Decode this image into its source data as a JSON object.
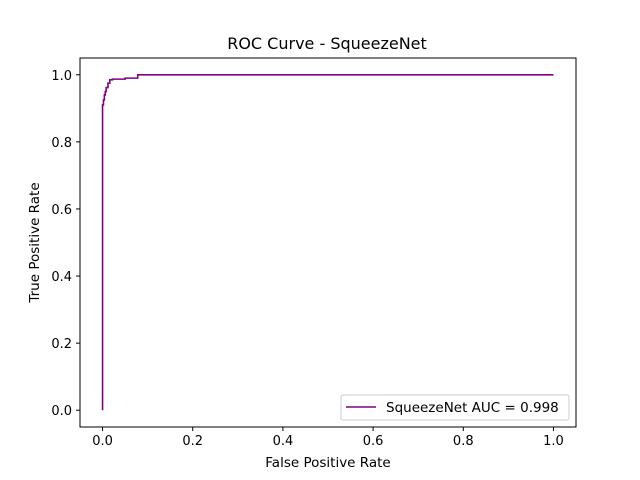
{
  "chart_data": {
    "type": "line",
    "title": "ROC Curve - SqueezeNet",
    "xlabel": "False Positive Rate",
    "ylabel": "True Positive Rate",
    "xlim": [
      -0.05,
      1.05
    ],
    "ylim": [
      -0.05,
      1.05
    ],
    "xticks": [
      "0.0",
      "0.2",
      "0.4",
      "0.6",
      "0.8",
      "1.0"
    ],
    "yticks": [
      "0.0",
      "0.2",
      "0.4",
      "0.6",
      "0.8",
      "1.0"
    ],
    "grid": false,
    "legend_position": "lower-right",
    "series": [
      {
        "name": "SqueezeNet AUC = 0.998",
        "color": "#800080",
        "x": [
          0.0,
          0.0,
          0.002,
          0.002,
          0.004,
          0.004,
          0.006,
          0.006,
          0.008,
          0.008,
          0.012,
          0.012,
          0.016,
          0.016,
          0.022,
          0.022,
          0.05,
          0.05,
          0.078,
          0.078,
          1.0
        ],
        "y": [
          0.0,
          0.91,
          0.91,
          0.925,
          0.925,
          0.94,
          0.94,
          0.95,
          0.95,
          0.962,
          0.962,
          0.975,
          0.975,
          0.985,
          0.985,
          0.987,
          0.987,
          0.99,
          0.99,
          1.0,
          1.0
        ]
      }
    ]
  }
}
